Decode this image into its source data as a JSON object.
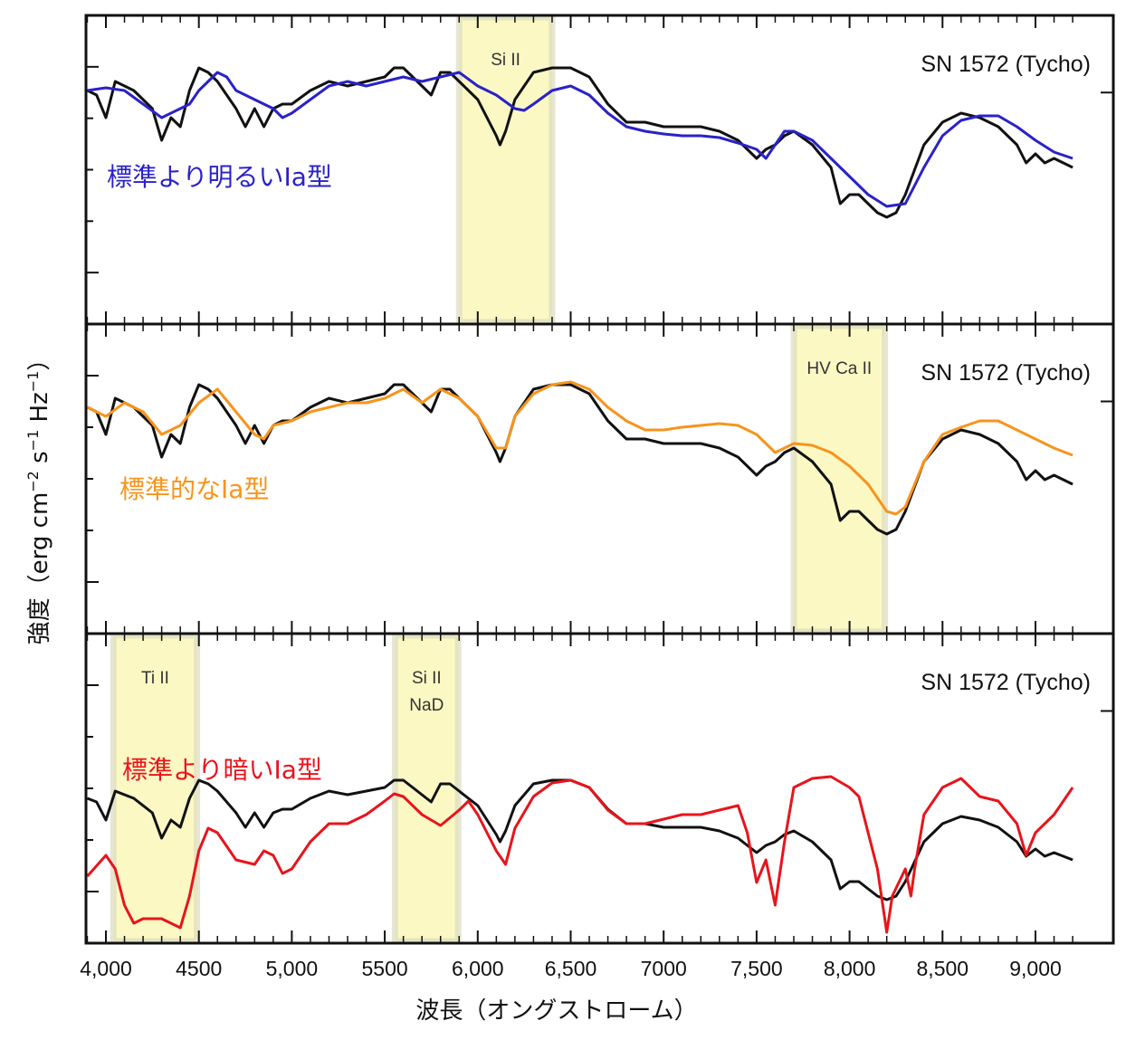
{
  "chart_data": {
    "type": "line",
    "xlabel": "波長（オングストローム）",
    "ylabel_main": "強度（erg cm",
    "ylabel_sup1": "−2",
    "ylabel_mid": " s",
    "ylabel_sup2": "−1",
    "ylabel_mid2": " Hz",
    "ylabel_sup3": "−1",
    "ylabel_end": "）",
    "xlim": [
      3900,
      9250
    ],
    "x_ticks": [
      4000,
      4500,
      5000,
      5500,
      6000,
      6500,
      7000,
      7500,
      8000,
      8500,
      9000
    ],
    "x_tick_labels": [
      "4,000",
      "4500",
      "5,000",
      "5500",
      "6,000",
      "6,500",
      "7000",
      "7,500",
      "8,000",
      "8,500",
      "9,000"
    ],
    "grid": false,
    "tycho": {
      "name": "SN 1572 (Tycho)",
      "color": "#111111",
      "x": [
        3900,
        3950,
        4000,
        4050,
        4150,
        4250,
        4300,
        4350,
        4400,
        4450,
        4500,
        4550,
        4600,
        4700,
        4750,
        4800,
        4850,
        4900,
        4950,
        5000,
        5100,
        5200,
        5300,
        5400,
        5500,
        5550,
        5600,
        5650,
        5750,
        5800,
        5850,
        5900,
        6000,
        6100,
        6120,
        6150,
        6200,
        6300,
        6400,
        6500,
        6600,
        6700,
        6800,
        6900,
        7000,
        7100,
        7200,
        7300,
        7400,
        7500,
        7550,
        7600,
        7650,
        7700,
        7800,
        7900,
        7950,
        8000,
        8050,
        8100,
        8150,
        8200,
        8250,
        8300,
        8400,
        8500,
        8600,
        8700,
        8800,
        8900,
        8950,
        9000,
        9050,
        9100,
        9200
      ],
      "y": [
        25,
        24.5,
        22,
        26,
        25,
        23,
        19.5,
        22,
        21,
        25,
        27.5,
        27,
        26,
        23,
        21,
        23,
        21,
        23,
        23.5,
        23.5,
        25,
        26,
        25.5,
        26,
        26.5,
        27.5,
        27.5,
        26.5,
        24.5,
        27,
        27,
        26,
        24,
        20,
        19,
        20.5,
        24,
        27,
        27.5,
        27.5,
        26.5,
        23.5,
        21.5,
        21.5,
        21,
        21,
        21,
        20.5,
        19.5,
        17.5,
        18.5,
        19,
        20,
        20.5,
        19,
        16.5,
        12.5,
        13.5,
        13.5,
        12.5,
        11.5,
        11,
        11.5,
        13.5,
        19,
        21.5,
        22.5,
        22,
        21,
        19,
        17,
        18,
        17,
        17.5,
        16.5
      ]
    },
    "panels": [
      {
        "title": "SN 1572 (Tycho)",
        "tycho_scale": 1.0,
        "tycho_offset": 0.8,
        "series": {
          "name": "標準より明るいIa型",
          "color": "#2a22c8",
          "x": [
            3900,
            4000,
            4100,
            4200,
            4300,
            4400,
            4450,
            4500,
            4600,
            4650,
            4700,
            4800,
            4900,
            4950,
            5000,
            5100,
            5200,
            5300,
            5400,
            5500,
            5600,
            5700,
            5800,
            5900,
            6000,
            6100,
            6200,
            6250,
            6300,
            6400,
            6500,
            6600,
            6700,
            6800,
            6900,
            7000,
            7100,
            7200,
            7300,
            7400,
            7500,
            7550,
            7600,
            7650,
            7700,
            7800,
            7900,
            8000,
            8100,
            8200,
            8300,
            8400,
            8500,
            8600,
            8700,
            8800,
            8900,
            9000,
            9100,
            9200
          ],
          "y": [
            25.8,
            26.1,
            25.8,
            24.3,
            22.8,
            23.8,
            24.3,
            25.8,
            27.8,
            27.3,
            25.8,
            24.8,
            23.8,
            22.8,
            23.3,
            24.8,
            26.3,
            26.8,
            26.3,
            26.8,
            27.3,
            26.8,
            27.3,
            27.8,
            26.3,
            25.3,
            23.8,
            23.6,
            24.3,
            25.8,
            26.3,
            25.3,
            23.3,
            21.8,
            21.3,
            21.0,
            20.8,
            20.8,
            20.6,
            20.0,
            19.3,
            18.3,
            19.8,
            21.3,
            21.3,
            20.3,
            18.3,
            16.3,
            14.3,
            13.0,
            13.3,
            17.3,
            20.8,
            22.5,
            23.0,
            23.0,
            21.8,
            20.3,
            19.0,
            18.3
          ]
        },
        "bands": [
          {
            "label": [
              "Si II"
            ],
            "range": [
              5900,
              6400
            ]
          }
        ]
      },
      {
        "title": "SN 1572 (Tycho)",
        "tycho_scale": 1.0,
        "tycho_offset": 0,
        "series": {
          "name": "標準的なIa型",
          "color": "#f7941d",
          "x": [
            3900,
            4000,
            4100,
            4200,
            4300,
            4400,
            4500,
            4600,
            4700,
            4800,
            4850,
            4900,
            5000,
            5100,
            5200,
            5300,
            5400,
            5500,
            5600,
            5700,
            5800,
            5900,
            6000,
            6100,
            6150,
            6200,
            6300,
            6400,
            6500,
            6600,
            6700,
            6800,
            6900,
            7000,
            7100,
            7200,
            7300,
            7400,
            7500,
            7600,
            7700,
            7800,
            7900,
            8000,
            8100,
            8200,
            8250,
            8300,
            8400,
            8500,
            8600,
            8700,
            8800,
            8900,
            9000,
            9100,
            9200
          ],
          "y": [
            25,
            24,
            25.5,
            24.5,
            22,
            23,
            25.5,
            27,
            24.5,
            22,
            21.5,
            23,
            23.5,
            24.5,
            25,
            25.5,
            25.5,
            26,
            27,
            25.5,
            27,
            26,
            24,
            20.5,
            20.5,
            24,
            26.5,
            27.5,
            27.8,
            27,
            25,
            23.5,
            22.5,
            22.5,
            22.8,
            23,
            23.2,
            23,
            22,
            20,
            21,
            20.8,
            20,
            18.5,
            16.5,
            13.5,
            13.2,
            14,
            19,
            22,
            22.8,
            23.5,
            23.5,
            22.5,
            21.5,
            20.5,
            19.7
          ]
        },
        "bands": [
          {
            "label": [
              "HV Ca II"
            ],
            "range": [
              7700,
              8190
            ]
          }
        ]
      },
      {
        "title": "SN 1572 (Tycho)",
        "tycho_scale": 0.8,
        "tycho_offset": -4,
        "series": {
          "name": "標準より暗いIa型",
          "color": "#e8141b",
          "x": [
            3900,
            4000,
            4050,
            4100,
            4150,
            4200,
            4300,
            4400,
            4450,
            4500,
            4550,
            4600,
            4700,
            4800,
            4850,
            4900,
            4950,
            5000,
            5100,
            5200,
            5300,
            5400,
            5500,
            5550,
            5600,
            5700,
            5800,
            5900,
            5950,
            6000,
            6100,
            6150,
            6200,
            6300,
            6400,
            6500,
            6600,
            6700,
            6800,
            6900,
            7000,
            7100,
            7200,
            7300,
            7400,
            7450,
            7500,
            7550,
            7600,
            7650,
            7700,
            7800,
            7900,
            8000,
            8050,
            8100,
            8150,
            8200,
            8230,
            8300,
            8330,
            8350,
            8400,
            8500,
            8600,
            8700,
            8800,
            8900,
            8950,
            9000,
            9100,
            9200
          ],
          "y": [
            7.4,
            9.7,
            8.2,
            4.2,
            2.2,
            2.7,
            2.7,
            1.7,
            5.2,
            10.2,
            12.7,
            12.2,
            9.2,
            8.7,
            10.2,
            9.7,
            7.7,
            8.2,
            11.2,
            13.2,
            13.2,
            14.2,
            15.7,
            16.5,
            16.2,
            14.2,
            13.0,
            14.7,
            15.7,
            14.2,
            10.2,
            8.7,
            12.7,
            16.2,
            17.7,
            18.0,
            17.2,
            14.7,
            13.2,
            13.2,
            13.7,
            14.2,
            14.2,
            14.7,
            15.2,
            12.2,
            6.7,
            9.2,
            4.2,
            11.2,
            17.2,
            18.2,
            18.4,
            17.2,
            16.2,
            12.2,
            8.2,
            1.2,
            5.2,
            8.2,
            5.2,
            8.2,
            14.2,
            17.2,
            18.2,
            16.2,
            15.7,
            13.2,
            9.7,
            12.2,
            14.2,
            17.2
          ]
        },
        "bands": [
          {
            "label": [
              "Ti II"
            ],
            "range": [
              4040,
              4490
            ]
          },
          {
            "label": [
              "Si II",
              "NaD"
            ],
            "range": [
              5555,
              5895
            ]
          }
        ]
      }
    ]
  }
}
